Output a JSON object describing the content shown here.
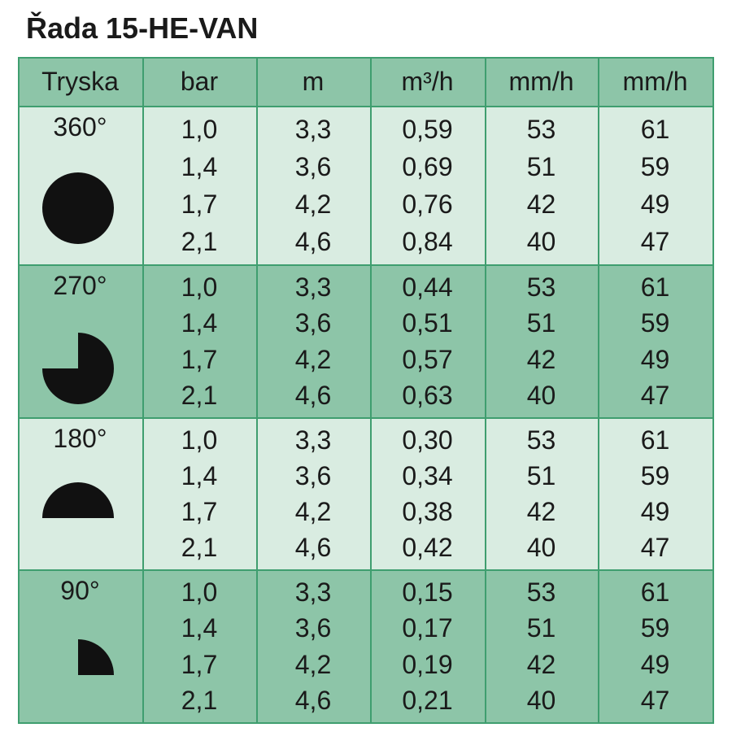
{
  "title": "Řada 15-HE-VAN",
  "table": {
    "header": [
      "Tryska",
      "bar",
      "m",
      "m³/h",
      "mm/h",
      "mm/h"
    ],
    "groups": [
      {
        "label": "360°",
        "rows": [
          [
            "1,0",
            "3,3",
            "0,59",
            "53",
            "61"
          ],
          [
            "1,4",
            "3,6",
            "0,69",
            "51",
            "59"
          ],
          [
            "1,7",
            "4,2",
            "0,76",
            "42",
            "49"
          ],
          [
            "2,1",
            "4,6",
            "0,84",
            "40",
            "47"
          ]
        ]
      },
      {
        "label": "270°",
        "rows": [
          [
            "1,0",
            "3,3",
            "0,44",
            "53",
            "61"
          ],
          [
            "1,4",
            "3,6",
            "0,51",
            "51",
            "59"
          ],
          [
            "1,7",
            "4,2",
            "0,57",
            "42",
            "49"
          ],
          [
            "2,1",
            "4,6",
            "0,63",
            "40",
            "47"
          ]
        ]
      },
      {
        "label": "180°",
        "rows": [
          [
            "1,0",
            "3,3",
            "0,30",
            "53",
            "61"
          ],
          [
            "1,4",
            "3,6",
            "0,34",
            "51",
            "59"
          ],
          [
            "1,7",
            "4,2",
            "0,38",
            "42",
            "49"
          ],
          [
            "2,1",
            "4,6",
            "0,42",
            "40",
            "47"
          ]
        ]
      },
      {
        "label": "90°",
        "rows": [
          [
            "1,0",
            "3,3",
            "0,15",
            "53",
            "61"
          ],
          [
            "1,4",
            "3,6",
            "0,17",
            "51",
            "59"
          ],
          [
            "1,7",
            "4,2",
            "0,19",
            "42",
            "49"
          ],
          [
            "2,1",
            "4,6",
            "0,21",
            "40",
            "47"
          ]
        ]
      }
    ]
  }
}
